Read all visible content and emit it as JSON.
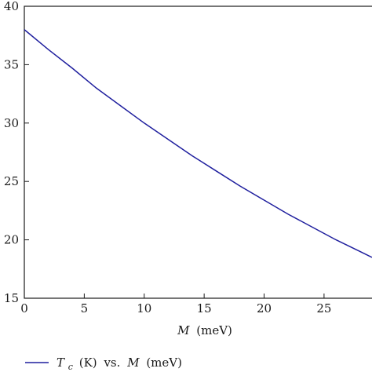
{
  "chart_data": {
    "type": "line",
    "xlabel_var": "M",
    "xlabel_unit": "(meV)",
    "ylabel": "",
    "xlim": [
      0,
      29
    ],
    "ylim": [
      15,
      40
    ],
    "xticks": [
      "0",
      "5",
      "10",
      "15",
      "20",
      "25"
    ],
    "yticks": [
      "15",
      "20",
      "25",
      "30",
      "35",
      "40"
    ],
    "grid": false,
    "legend_position": "bottom-left",
    "legend": {
      "var_t": "T",
      "sub_c": "c",
      "unit_k": "(K)",
      "vs": "vs.",
      "var_m": "M",
      "unit_mev": "(meV)"
    },
    "series": [
      {
        "color": "#1f1f9e",
        "x": [
          0,
          2,
          4,
          6,
          8,
          10,
          12,
          14,
          16,
          18,
          20,
          22,
          24,
          26,
          28,
          29
        ],
        "y": [
          38.0,
          36.3,
          34.7,
          33.0,
          31.5,
          30.0,
          28.6,
          27.2,
          25.9,
          24.6,
          23.4,
          22.2,
          21.1,
          20.0,
          19.0,
          18.5
        ]
      }
    ]
  }
}
